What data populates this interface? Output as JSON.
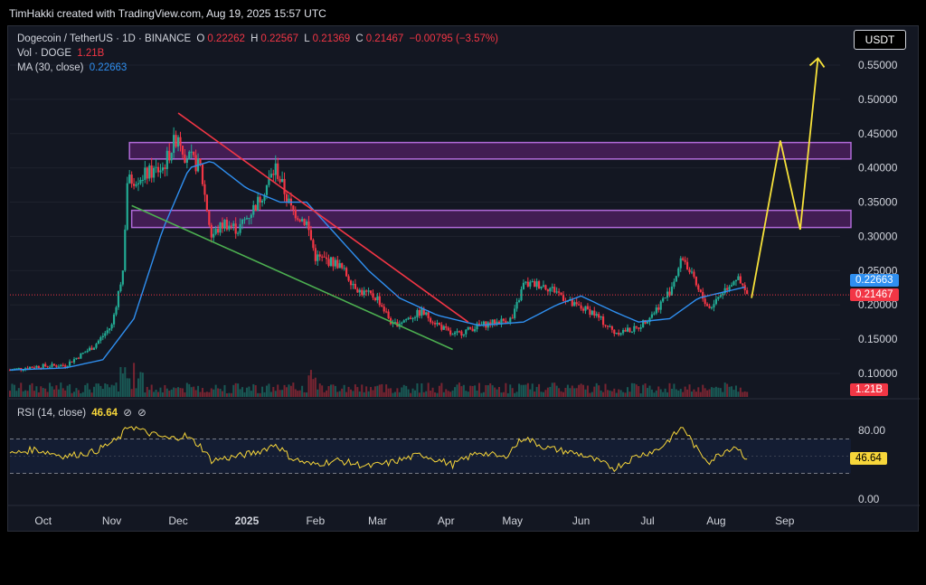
{
  "header": {
    "credit": "TimHakki created with TradingView.com, Aug 19, 2025 15:57 UTC"
  },
  "legend": {
    "symbol": "Dogecoin / TetherUS · 1D · BINANCE",
    "o_label": "O",
    "o_value": "0.22262",
    "h_label": "H",
    "h_value": "0.22567",
    "l_label": "L",
    "l_value": "0.21369",
    "c_label": "C",
    "c_value": "0.21467",
    "change": "−0.00795 (−3.57%)",
    "vol_label": "Vol · DOGE",
    "vol_value": "1.21B",
    "ma_label": "MA (30, close)",
    "ma_value": "0.22663",
    "rsi_label": "RSI (14, close)",
    "rsi_value": "46.64"
  },
  "currency_button": "USDT",
  "tags": {
    "ma": "0.22663",
    "price": "0.21467",
    "volume": "1.21B",
    "rsi": "46.64"
  },
  "colors": {
    "up": "#22ab94",
    "down": "#f23645",
    "ma": "#2f8ff0",
    "rsi": "#f7d63a",
    "zone": "#9c27b0",
    "resistance": "#f23645",
    "support": "#4caf50",
    "projection": "#f7e23a"
  },
  "chart_data": {
    "type": "candlestick",
    "y_ticks": [
      "0.55000",
      "0.50000",
      "0.45000",
      "0.40000",
      "0.35000",
      "0.30000",
      "0.25000",
      "0.20000",
      "0.15000",
      "0.10000"
    ],
    "y_tick_values": [
      0.55,
      0.5,
      0.45,
      0.4,
      0.35,
      0.3,
      0.25,
      0.2,
      0.15,
      0.1
    ],
    "x_ticks": [
      "Oct",
      "Nov",
      "Dec",
      "2025",
      "Feb",
      "Mar",
      "Apr",
      "May",
      "Jun",
      "Jul",
      "Aug",
      "Sep"
    ],
    "rsi_ticks": [
      "80.00",
      "0.00"
    ],
    "rsi_levels": [
      70,
      30
    ],
    "close_path": [
      [
        "2024-09-20",
        0.105
      ],
      [
        "2024-10-01",
        0.11
      ],
      [
        "2024-10-15",
        0.112
      ],
      [
        "2024-10-28",
        0.14
      ],
      [
        "2024-11-05",
        0.17
      ],
      [
        "2024-11-10",
        0.25
      ],
      [
        "2024-11-12",
        0.38
      ],
      [
        "2024-11-20",
        0.39
      ],
      [
        "2024-11-28",
        0.4
      ],
      [
        "2024-12-05",
        0.45
      ],
      [
        "2024-12-08",
        0.42
      ],
      [
        "2024-12-15",
        0.4
      ],
      [
        "2024-12-20",
        0.3
      ],
      [
        "2024-12-26",
        0.32
      ],
      [
        "2025-01-01",
        0.31
      ],
      [
        "2025-01-10",
        0.35
      ],
      [
        "2025-01-18",
        0.4
      ],
      [
        "2025-01-25",
        0.34
      ],
      [
        "2025-02-01",
        0.32
      ],
      [
        "2025-02-05",
        0.27
      ],
      [
        "2025-02-15",
        0.26
      ],
      [
        "2025-02-25",
        0.22
      ],
      [
        "2025-03-05",
        0.21
      ],
      [
        "2025-03-12",
        0.17
      ],
      [
        "2025-03-25",
        0.19
      ],
      [
        "2025-04-02",
        0.17
      ],
      [
        "2025-04-08",
        0.155
      ],
      [
        "2025-04-20",
        0.17
      ],
      [
        "2025-04-28",
        0.175
      ],
      [
        "2025-05-05",
        0.18
      ],
      [
        "2025-05-10",
        0.23
      ],
      [
        "2025-05-18",
        0.23
      ],
      [
        "2025-05-25",
        0.22
      ],
      [
        "2025-06-01",
        0.2
      ],
      [
        "2025-06-10",
        0.19
      ],
      [
        "2025-06-20",
        0.16
      ],
      [
        "2025-06-30",
        0.165
      ],
      [
        "2025-07-08",
        0.19
      ],
      [
        "2025-07-15",
        0.22
      ],
      [
        "2025-07-21",
        0.27
      ],
      [
        "2025-07-28",
        0.22
      ],
      [
        "2025-08-02",
        0.195
      ],
      [
        "2025-08-08",
        0.22
      ],
      [
        "2025-08-14",
        0.24
      ],
      [
        "2025-08-19",
        0.21467
      ]
    ],
    "ma_path": [
      [
        "2024-09-20",
        0.105
      ],
      [
        "2024-10-15",
        0.108
      ],
      [
        "2024-11-01",
        0.12
      ],
      [
        "2024-11-15",
        0.18
      ],
      [
        "2024-11-28",
        0.31
      ],
      [
        "2024-12-10",
        0.4
      ],
      [
        "2024-12-20",
        0.41
      ],
      [
        "2025-01-05",
        0.37
      ],
      [
        "2025-01-20",
        0.35
      ],
      [
        "2025-02-01",
        0.35
      ],
      [
        "2025-02-15",
        0.3
      ],
      [
        "2025-03-01",
        0.25
      ],
      [
        "2025-03-15",
        0.21
      ],
      [
        "2025-04-01",
        0.185
      ],
      [
        "2025-04-20",
        0.17
      ],
      [
        "2025-05-10",
        0.175
      ],
      [
        "2025-05-25",
        0.2
      ],
      [
        "2025-06-05",
        0.213
      ],
      [
        "2025-06-20",
        0.19
      ],
      [
        "2025-07-01",
        0.175
      ],
      [
        "2025-07-15",
        0.18
      ],
      [
        "2025-07-28",
        0.21
      ],
      [
        "2025-08-10",
        0.22
      ],
      [
        "2025-08-19",
        0.22663
      ]
    ],
    "rsi_path": [
      [
        "2024-09-20",
        52
      ],
      [
        "2024-10-01",
        58
      ],
      [
        "2024-10-15",
        50
      ],
      [
        "2024-10-28",
        55
      ],
      [
        "2024-11-08",
        70
      ],
      [
        "2024-11-13",
        86
      ],
      [
        "2024-11-20",
        78
      ],
      [
        "2024-12-01",
        70
      ],
      [
        "2024-12-08",
        74
      ],
      [
        "2024-12-15",
        62
      ],
      [
        "2024-12-20",
        45
      ],
      [
        "2025-01-01",
        50
      ],
      [
        "2025-01-10",
        55
      ],
      [
        "2025-01-18",
        64
      ],
      [
        "2025-01-25",
        48
      ],
      [
        "2025-02-03",
        40
      ],
      [
        "2025-02-15",
        45
      ],
      [
        "2025-03-01",
        38
      ],
      [
        "2025-03-10",
        42
      ],
      [
        "2025-03-25",
        52
      ],
      [
        "2025-04-08",
        40
      ],
      [
        "2025-04-20",
        55
      ],
      [
        "2025-05-01",
        48
      ],
      [
        "2025-05-10",
        72
      ],
      [
        "2025-05-20",
        60
      ],
      [
        "2025-06-05",
        52
      ],
      [
        "2025-06-20",
        36
      ],
      [
        "2025-06-30",
        50
      ],
      [
        "2025-07-10",
        58
      ],
      [
        "2025-07-21",
        84
      ],
      [
        "2025-07-28",
        55
      ],
      [
        "2025-08-02",
        44
      ],
      [
        "2025-08-10",
        58
      ],
      [
        "2025-08-14",
        62
      ],
      [
        "2025-08-19",
        46.64
      ]
    ],
    "annotations": {
      "resistance_zone_1": [
        0.413,
        0.437
      ],
      "resistance_zone_2": [
        0.313,
        0.338
      ],
      "resistance_line": [
        [
          "2024-12-05",
          0.48
        ],
        [
          "2025-04-15",
          0.175
        ]
      ],
      "support_line": [
        [
          "2024-11-14",
          0.345
        ],
        [
          "2025-04-08",
          0.135
        ]
      ],
      "projection": [
        [
          "2025-08-21",
          0.21
        ],
        [
          "2025-09-03",
          0.44
        ],
        [
          "2025-09-12",
          0.31
        ],
        [
          "2025-09-20",
          0.56
        ]
      ]
    },
    "last_price": 0.21467,
    "last_date": "2025-08-19"
  }
}
